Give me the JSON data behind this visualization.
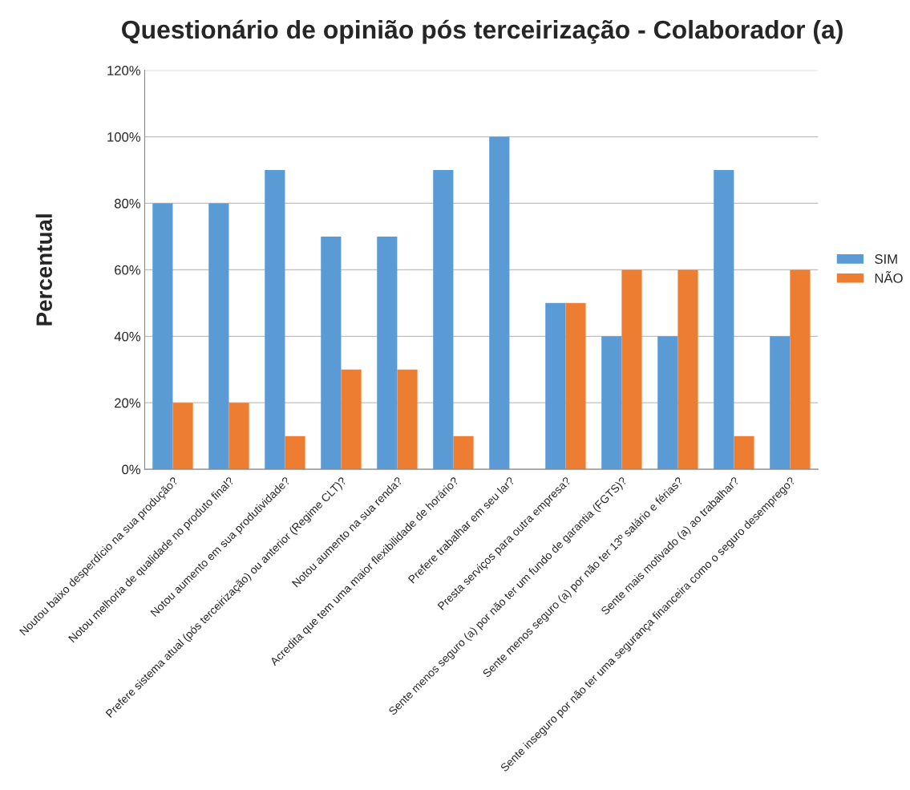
{
  "chart_data": {
    "type": "bar",
    "title": "Questionário de opinião pós terceirização - Colaborador (a)",
    "ylabel": "Percentual",
    "categories": [
      "Noutou baixo desperdício na sua produção?",
      "Notou melhoria de qualidade no produto final?",
      "Notou aumento em sua produtividade?",
      "Prefere sistema atual (pós terceirização) ou anterior (Regime CLT)?",
      "Notou aumento na sua renda?",
      "Acredita que tem uma maior flexibilidade de horário?",
      "Prefere trabalhar em seu lar?",
      "Presta serviços para outra empresa?",
      "Sente menos seguro (a) por não ter um fundo de garantia (FGTS)?",
      "Sente menos seguro (a) por não ter 13º salário e férias?",
      "Sente mais motivado (a) ao trabalhar?",
      "Sente inseguro por não ter uma segurança financeira como o seguro desemprego?"
    ],
    "series": [
      {
        "name": "SIM",
        "color": "#5b9bd5",
        "values": [
          80,
          80,
          90,
          70,
          70,
          90,
          100,
          50,
          40,
          40,
          90,
          40
        ]
      },
      {
        "name": "NÃO",
        "color": "#ed7d31",
        "values": [
          20,
          20,
          10,
          30,
          30,
          10,
          null,
          50,
          60,
          60,
          10,
          60
        ]
      }
    ],
    "ylim": [
      0,
      120
    ],
    "yticks": [
      {
        "value": 0,
        "label": "0%"
      },
      {
        "value": 20,
        "label": "20%"
      },
      {
        "value": 40,
        "label": "40%"
      },
      {
        "value": 60,
        "label": "60%"
      },
      {
        "value": 80,
        "label": "80%"
      },
      {
        "value": 100,
        "label": "100%"
      },
      {
        "value": 120,
        "label": "120%"
      }
    ],
    "grid": "y",
    "legend": "right"
  }
}
